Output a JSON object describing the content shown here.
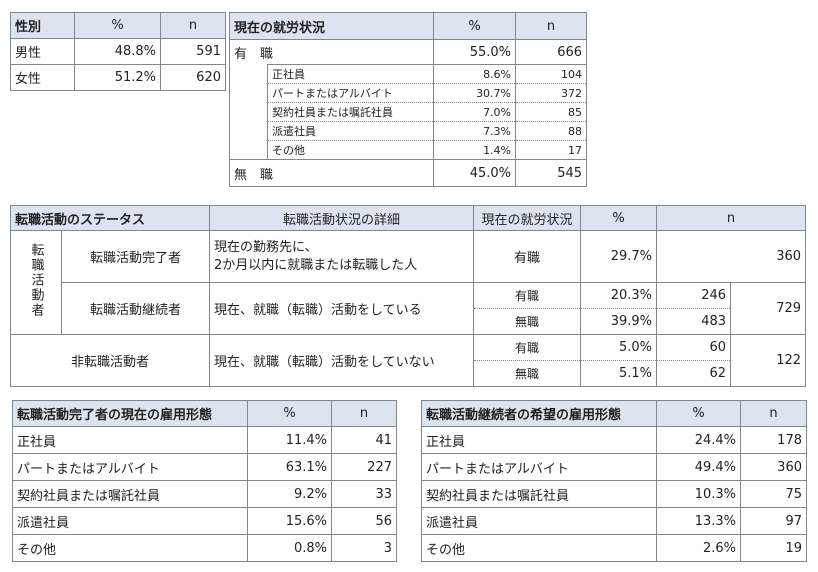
{
  "gender": {
    "title": "性別",
    "pct_header": "%",
    "n_header": "n",
    "rows": [
      {
        "label": "男性",
        "pct": "48.8%",
        "n": "591"
      },
      {
        "label": "女性",
        "pct": "51.2%",
        "n": "620"
      }
    ]
  },
  "employment": {
    "title": "現在の就労状況",
    "pct_header": "%",
    "n_header": "n",
    "employed": {
      "label": "有　職",
      "pct": "55.0%",
      "n": "666"
    },
    "subrows": [
      {
        "label": "正社員",
        "pct": "8.6%",
        "n": "104"
      },
      {
        "label": "パートまたはアルバイト",
        "pct": "30.7%",
        "n": "372"
      },
      {
        "label": "契約社員または嘱託社員",
        "pct": "7.0%",
        "n": "85"
      },
      {
        "label": "派遣社員",
        "pct": "7.3%",
        "n": "88"
      },
      {
        "label": "その他",
        "pct": "1.4%",
        "n": "17"
      }
    ],
    "unemployed": {
      "label": "無　職",
      "pct": "45.0%",
      "n": "545"
    }
  },
  "jobchange": {
    "title": "転職活動のステータス",
    "detail_header": "転職活動状況の詳細",
    "status_header": "現在の就労状況",
    "pct_header": "%",
    "n_header": "n",
    "side_label": "転職活動者",
    "completed": {
      "label": "転職活動完了者",
      "detail_line1": "現在の勤務先に、",
      "detail_line2": "2か月以内に就職または転職した人",
      "status": "有職",
      "pct": "29.7%",
      "n": "360"
    },
    "continuing": {
      "label": "転職活動継続者",
      "detail": "現在、就職（転職）活動をしている",
      "rows": [
        {
          "status": "有職",
          "pct": "20.3%",
          "n": "246"
        },
        {
          "status": "無職",
          "pct": "39.9%",
          "n": "483"
        }
      ],
      "total": "729"
    },
    "non": {
      "label": "非転職活動者",
      "detail": "現在、就職（転職）活動をしていない",
      "rows": [
        {
          "status": "有職",
          "pct": "5.0%",
          "n": "60"
        },
        {
          "status": "無職",
          "pct": "5.1%",
          "n": "62"
        }
      ],
      "total": "122"
    }
  },
  "completed_form": {
    "title": "転職活動完了者の現在の雇用形態",
    "pct_header": "%",
    "n_header": "n",
    "rows": [
      {
        "label": "正社員",
        "pct": "11.4%",
        "n": "41"
      },
      {
        "label": "パートまたはアルバイト",
        "pct": "63.1%",
        "n": "227"
      },
      {
        "label": "契約社員または嘱託社員",
        "pct": "9.2%",
        "n": "33"
      },
      {
        "label": "派遣社員",
        "pct": "15.6%",
        "n": "56"
      },
      {
        "label": "その他",
        "pct": "0.8%",
        "n": "3"
      }
    ]
  },
  "continuing_form": {
    "title": "転職活動継続者の希望の雇用形態",
    "pct_header": "%",
    "n_header": "n",
    "rows": [
      {
        "label": "正社員",
        "pct": "24.4%",
        "n": "178"
      },
      {
        "label": "パートまたはアルバイト",
        "pct": "49.4%",
        "n": "360"
      },
      {
        "label": "契約社員または嘱託社員",
        "pct": "10.3%",
        "n": "75"
      },
      {
        "label": "派遣社員",
        "pct": "13.3%",
        "n": "97"
      },
      {
        "label": "その他",
        "pct": "2.6%",
        "n": "19"
      }
    ]
  }
}
